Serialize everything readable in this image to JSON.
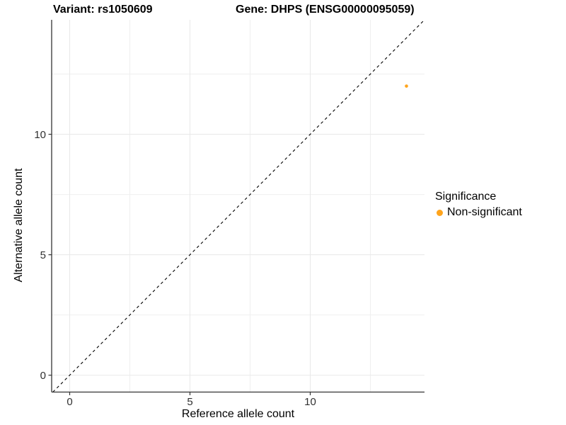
{
  "chart_data": {
    "type": "scatter",
    "title_left": "Variant: rs1050609",
    "title_right": "Gene: DHPS (ENSG00000095059)",
    "xlabel": "Reference allele count",
    "ylabel": "Alternative allele count",
    "xlim": [
      -0.75,
      14.75
    ],
    "ylim": [
      -0.7,
      14.75
    ],
    "x_ticks": [
      0,
      5,
      10
    ],
    "y_ticks": [
      0,
      5,
      10
    ],
    "x_minor_ticks": [
      2.5,
      7.5,
      12.5
    ],
    "y_minor_ticks": [
      2.5,
      7.5,
      12.5
    ],
    "grid": true,
    "legend_position": "right",
    "legend_title": "Significance",
    "series": [
      {
        "name": "Non-significant",
        "color": "#FFA41C",
        "point_radius": 2.3,
        "points": [
          {
            "x": 14,
            "y": 12
          }
        ]
      }
    ],
    "reference_line": {
      "type": "identity y = x",
      "slope": 1,
      "intercept": 0,
      "style": "dashed",
      "color": "#000000"
    }
  },
  "legend": {
    "swatch_icon": "filled-circle-icon"
  },
  "colors": {
    "background": "#FFFFFF",
    "grid_major": "#E8E8E8",
    "grid_minor": "#EFEFEF",
    "axis_line": "#333333",
    "tick_mark": "#333333",
    "tick_text": "#303030",
    "title_text": "#000000"
  }
}
